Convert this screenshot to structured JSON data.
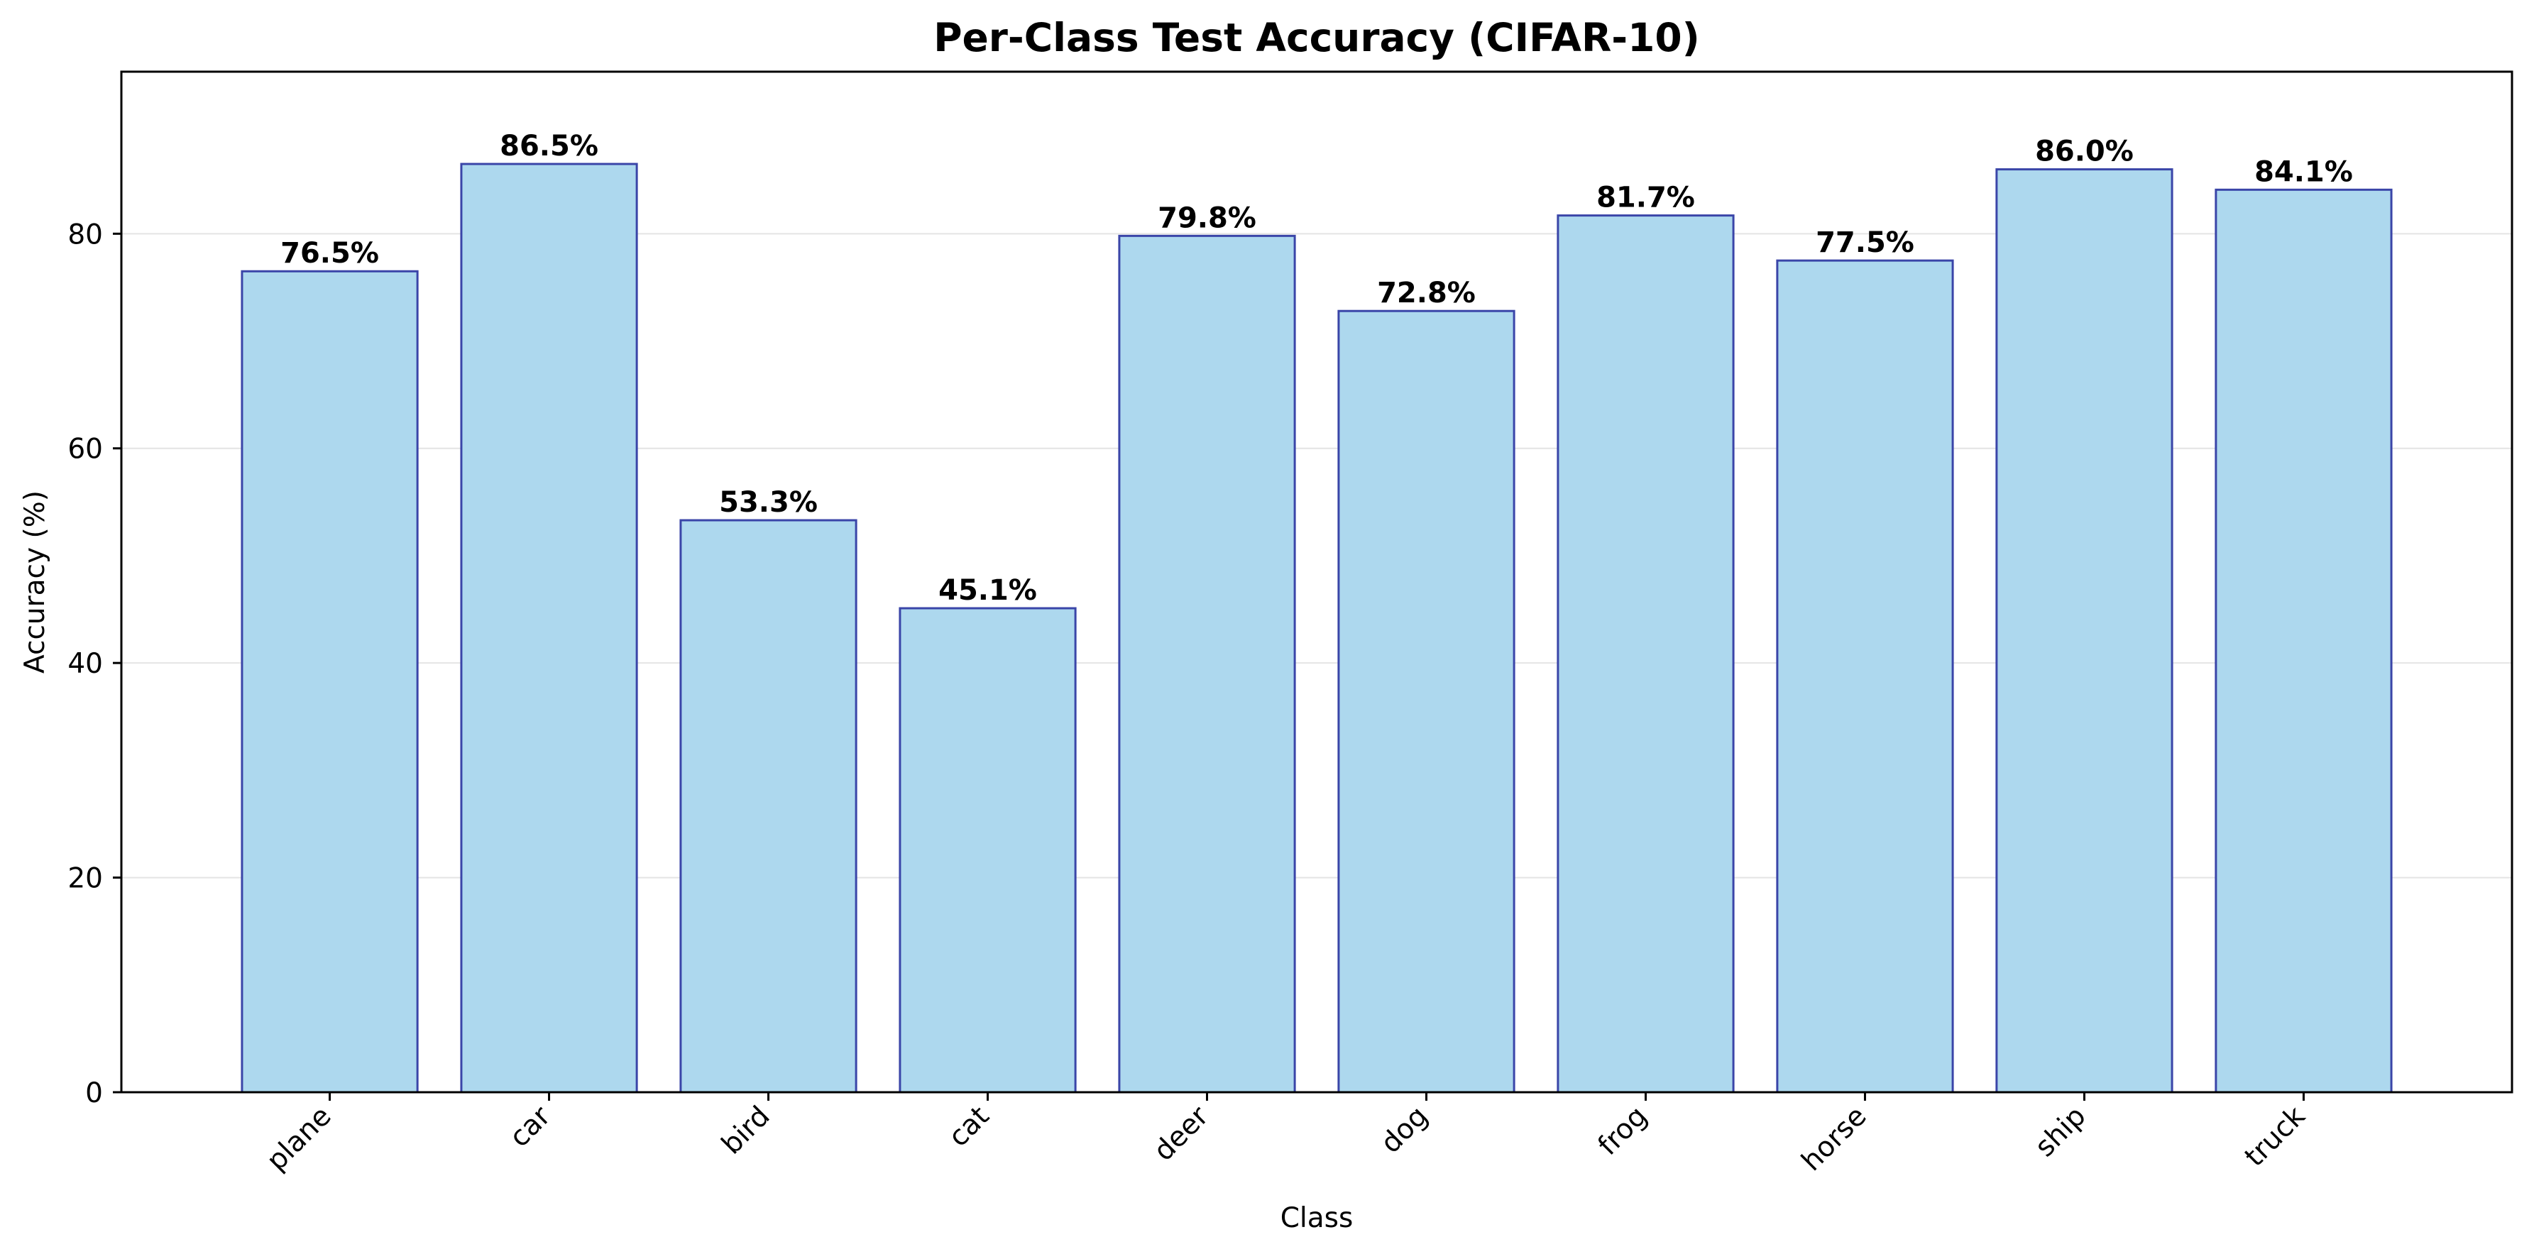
{
  "chart_data": {
    "type": "bar",
    "title": "Per-Class Test Accuracy (CIFAR-10)",
    "xlabel": "Class",
    "ylabel": "Accuracy (%)",
    "categories": [
      "plane",
      "car",
      "bird",
      "cat",
      "deer",
      "dog",
      "frog",
      "horse",
      "ship",
      "truck"
    ],
    "values": [
      76.5,
      86.5,
      53.3,
      45.1,
      79.8,
      72.8,
      81.7,
      77.5,
      86.0,
      84.1
    ],
    "value_labels": [
      "76.5%",
      "86.5%",
      "53.3%",
      "45.1%",
      "79.8%",
      "72.8%",
      "81.7%",
      "77.5%",
      "86.0%",
      "84.1%"
    ],
    "ylim": [
      0,
      95.1
    ],
    "yticks": [
      0,
      20,
      40,
      60,
      80
    ],
    "ytick_labels": [
      "0",
      "20",
      "40",
      "60",
      "80"
    ],
    "grid": true,
    "grid_axis": "y",
    "legend": false,
    "colors": {
      "bar_fill": "#add8ee",
      "bar_edge": "#3a45a8",
      "grid": "#e4e4e4",
      "axes": "#000000"
    }
  }
}
